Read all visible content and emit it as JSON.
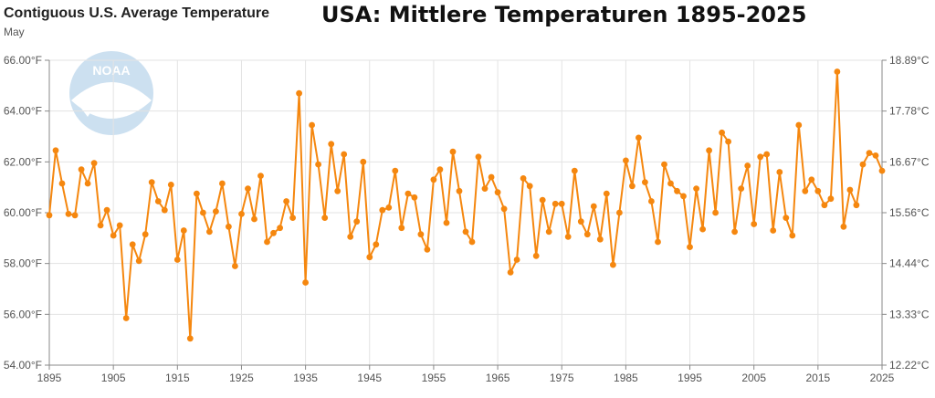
{
  "header": {
    "title": "Contiguous U.S. Average Temperature",
    "subtitle": "May"
  },
  "overlay_title": "USA: Mittlere Temperaturen 1895-2025",
  "logo_text": "NOAA",
  "colors": {
    "series": "#f5870f",
    "grid": "#e3e3e3",
    "axis": "#888888"
  },
  "chart_data": {
    "type": "line",
    "title": "Contiguous U.S. Average Temperature",
    "subtitle": "May",
    "xlabel": "",
    "ylabel": "",
    "xlim": [
      1895,
      2025
    ],
    "ylim": [
      54,
      66
    ],
    "x_ticks": [
      "1895",
      "1905",
      "1915",
      "1925",
      "1935",
      "1945",
      "1955",
      "1965",
      "1975",
      "1985",
      "1995",
      "2005",
      "2015",
      "2025"
    ],
    "y_ticks_left": [
      "54.00°F",
      "56.00°F",
      "58.00°F",
      "60.00°F",
      "62.00°F",
      "64.00°F",
      "66.00°F"
    ],
    "y_ticks_right": [
      "12.22°C",
      "13.33°C",
      "14.44°C",
      "15.56°C",
      "16.67°C",
      "17.78°C",
      "18.89°C"
    ],
    "grid": true,
    "legend": "none",
    "series": [
      {
        "x": [
          1895,
          1896,
          1897,
          1898,
          1899,
          1900,
          1901,
          1902,
          1903,
          1904,
          1905,
          1906,
          1907,
          1908,
          1909,
          1910,
          1911,
          1912,
          1913,
          1914,
          1915,
          1916,
          1917,
          1918,
          1919,
          1920,
          1921,
          1922,
          1923,
          1924,
          1925,
          1926,
          1927,
          1928,
          1929,
          1930,
          1931,
          1932,
          1933,
          1934,
          1935,
          1936,
          1937,
          1938,
          1939,
          1940,
          1941,
          1942,
          1943,
          1944,
          1945,
          1946,
          1947,
          1948,
          1949,
          1950,
          1951,
          1952,
          1953,
          1954,
          1955,
          1956,
          1957,
          1958,
          1959,
          1960,
          1961,
          1962,
          1963,
          1964,
          1965,
          1966,
          1967,
          1968,
          1969,
          1970,
          1971,
          1972,
          1973,
          1974,
          1975,
          1976,
          1977,
          1978,
          1979,
          1980,
          1981,
          1982,
          1983,
          1984,
          1985,
          1986,
          1987,
          1988,
          1989,
          1990,
          1991,
          1992,
          1993,
          1994,
          1995,
          1996,
          1997,
          1998,
          1999,
          2000,
          2001,
          2002,
          2003,
          2004,
          2005,
          2006,
          2007,
          2008,
          2009,
          2010,
          2011,
          2012,
          2013,
          2014,
          2015,
          2016,
          2017,
          2018,
          2019,
          2020,
          2021,
          2022,
          2023,
          2024,
          2025
        ],
        "values": [
          59.9,
          62.45,
          61.15,
          59.95,
          59.9,
          61.7,
          61.15,
          61.95,
          59.5,
          60.1,
          59.1,
          59.5,
          55.85,
          58.75,
          58.1,
          59.15,
          61.2,
          60.45,
          60.1,
          61.1,
          58.15,
          59.3,
          55.05,
          60.75,
          60.0,
          59.25,
          60.05,
          61.15,
          59.45,
          57.9,
          59.95,
          60.95,
          59.75,
          61.45,
          58.85,
          59.2,
          59.4,
          60.45,
          59.8,
          64.7,
          57.25,
          63.45,
          61.9,
          59.8,
          62.7,
          60.85,
          62.3,
          59.05,
          59.65,
          62.0,
          58.25,
          58.75,
          60.1,
          60.2,
          61.65,
          59.4,
          60.75,
          60.6,
          59.15,
          58.55,
          61.3,
          61.7,
          59.6,
          62.4,
          60.85,
          59.25,
          58.85,
          62.2,
          60.95,
          61.4,
          60.8,
          60.15,
          57.65,
          58.15,
          61.35,
          61.05,
          58.3,
          60.5,
          59.25,
          60.35,
          60.35,
          59.05,
          61.65,
          59.65,
          59.15,
          60.25,
          58.95,
          60.75,
          57.95,
          60.0,
          62.05,
          61.05,
          62.95,
          61.2,
          60.45,
          58.85,
          61.9,
          61.15,
          60.85,
          60.65,
          58.65,
          60.95,
          59.35,
          62.45,
          60.0,
          63.15,
          62.8,
          59.25,
          60.95,
          61.85,
          59.55,
          62.2,
          62.3,
          59.3,
          61.6,
          59.8,
          59.1,
          63.45,
          60.85,
          61.3,
          60.85,
          60.3,
          60.55,
          65.55,
          59.45,
          60.9,
          60.3,
          61.9,
          62.35,
          62.25,
          61.65
        ]
      }
    ]
  }
}
